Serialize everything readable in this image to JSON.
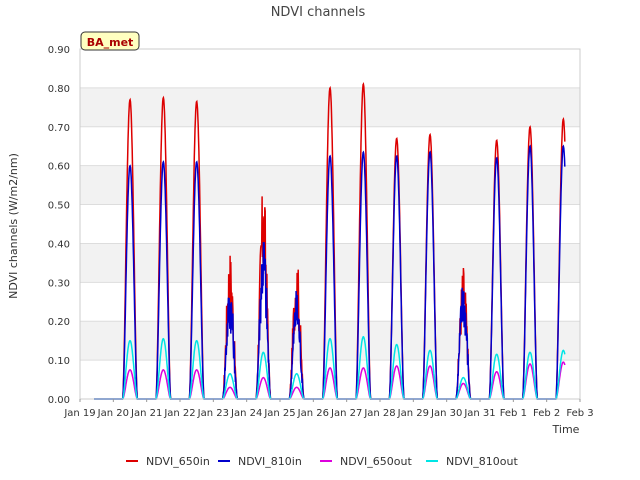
{
  "chart_data": {
    "type": "line",
    "title": "NDVI channels",
    "xlabel": "Time",
    "ylabel": "NDVI channels (W/m2/nm)",
    "ylim": [
      0,
      0.9
    ],
    "xlim": [
      0,
      15
    ],
    "yticks": [
      "0.00",
      "0.10",
      "0.20",
      "0.30",
      "0.40",
      "0.50",
      "0.60",
      "0.70",
      "0.80",
      "0.90"
    ],
    "xticks": [
      "Jan 19",
      "Jan 20",
      "Jan 21",
      "Jan 22",
      "Jan 23",
      "Jan 24",
      "Jan 25",
      "Jan 26",
      "Jan 27",
      "Jan 28",
      "Jan 29",
      "Jan 30",
      "Jan 31",
      "Feb 1",
      "Feb 2",
      "Feb 3"
    ],
    "annotation": "BA_met",
    "legend_position": "bottom",
    "series": [
      {
        "name": "NDVI_650in",
        "color": "#dd0000",
        "peaks": [
          0.77,
          0.775,
          0.765,
          0.39,
          0.56,
          0.37,
          0.8,
          0.81,
          0.67,
          0.68,
          0.35,
          0.665,
          0.7,
          0.72
        ]
      },
      {
        "name": "NDVI_810in",
        "color": "#0000cc",
        "peaks": [
          0.6,
          0.61,
          0.61,
          0.31,
          0.45,
          0.29,
          0.625,
          0.635,
          0.625,
          0.635,
          0.325,
          0.62,
          0.65,
          0.65
        ]
      },
      {
        "name": "NDVI_650out",
        "color": "#dd00dd",
        "peaks": [
          0.075,
          0.075,
          0.075,
          0.03,
          0.055,
          0.03,
          0.08,
          0.08,
          0.085,
          0.085,
          0.04,
          0.07,
          0.09,
          0.095
        ]
      },
      {
        "name": "NDVI_810out",
        "color": "#00e5e5",
        "peaks": [
          0.15,
          0.155,
          0.15,
          0.065,
          0.12,
          0.065,
          0.155,
          0.16,
          0.14,
          0.125,
          0.055,
          0.115,
          0.12,
          0.125
        ]
      }
    ]
  }
}
